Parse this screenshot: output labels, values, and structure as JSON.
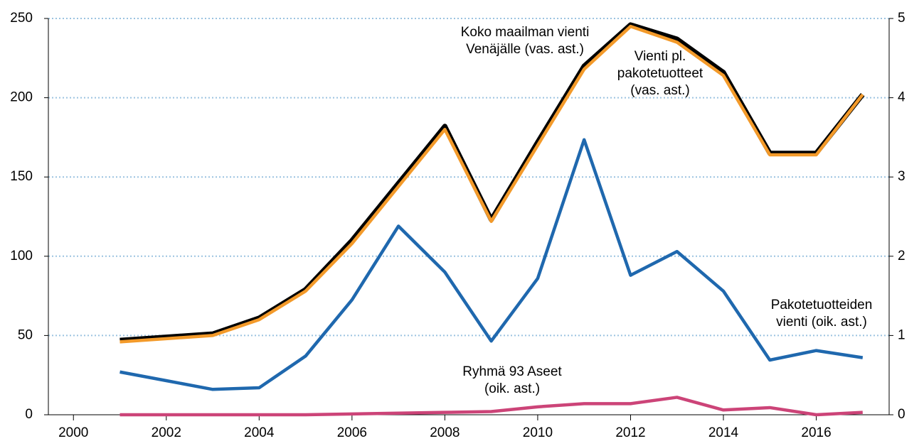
{
  "chart_data": {
    "type": "line",
    "x": [
      2001,
      2002,
      2003,
      2004,
      2005,
      2006,
      2007,
      2008,
      2009,
      2010,
      2011,
      2012,
      2013,
      2014,
      2015,
      2016,
      2017
    ],
    "xlim": [
      1999.46,
      2017.57
    ],
    "xticks": [
      2000,
      2002,
      2004,
      2006,
      2008,
      2010,
      2012,
      2014,
      2016
    ],
    "ylim": [
      0,
      250
    ],
    "yticks": [
      0,
      50,
      100,
      150,
      200,
      250
    ],
    "y2lim": [
      0,
      5
    ],
    "y2ticks": [
      0,
      1,
      2,
      3,
      4,
      5
    ],
    "grid": true,
    "series": [
      {
        "name": "Koko maailman vienti Venäjälle (vas. ast.)",
        "color": "#000000",
        "values": [
          47,
          49,
          51,
          61,
          79,
          110,
          146,
          182,
          123,
          172,
          220,
          246,
          237,
          216,
          165,
          165,
          202
        ]
      },
      {
        "name": "Vienti pl. pakotetuotteet (vas. ast.)",
        "color": "#f39a2a",
        "values": [
          46,
          48,
          50,
          60,
          78,
          108,
          144,
          180,
          122,
          170,
          218,
          245,
          235,
          214,
          164,
          164,
          202
        ]
      },
      {
        "name": "Pakotetuotteiden vienti (oik. ast.)",
        "color": "#1f68ae",
        "axis": "y2",
        "values": [
          0.54,
          0.43,
          0.32,
          0.34,
          0.74,
          1.45,
          2.38,
          1.8,
          0.93,
          1.72,
          3.47,
          1.76,
          2.06,
          1.56,
          0.69,
          0.81,
          0.72
        ]
      },
      {
        "name": "Ryhmä 93 Aseet (oik. ast.)",
        "color": "#cc4478",
        "axis": "y2",
        "values": [
          0,
          0,
          0,
          0,
          0,
          0.01,
          0.02,
          0.03,
          0.04,
          0.1,
          0.14,
          0.14,
          0.22,
          0.06,
          0.09,
          0,
          0.03
        ]
      }
    ],
    "annotations": [
      {
        "lines": [
          "Koko maailman vienti",
          "Venäjälle (vas. ast.)"
        ]
      },
      {
        "lines": [
          "Vienti pl.",
          "pakotetuotteet",
          "(vas. ast.)"
        ]
      },
      {
        "lines": [
          "Pakotetuotteiden",
          "vienti (oik. ast.)"
        ]
      },
      {
        "lines": [
          "Ryhmä 93 Aseet",
          "(oik. ast.)"
        ]
      }
    ]
  }
}
